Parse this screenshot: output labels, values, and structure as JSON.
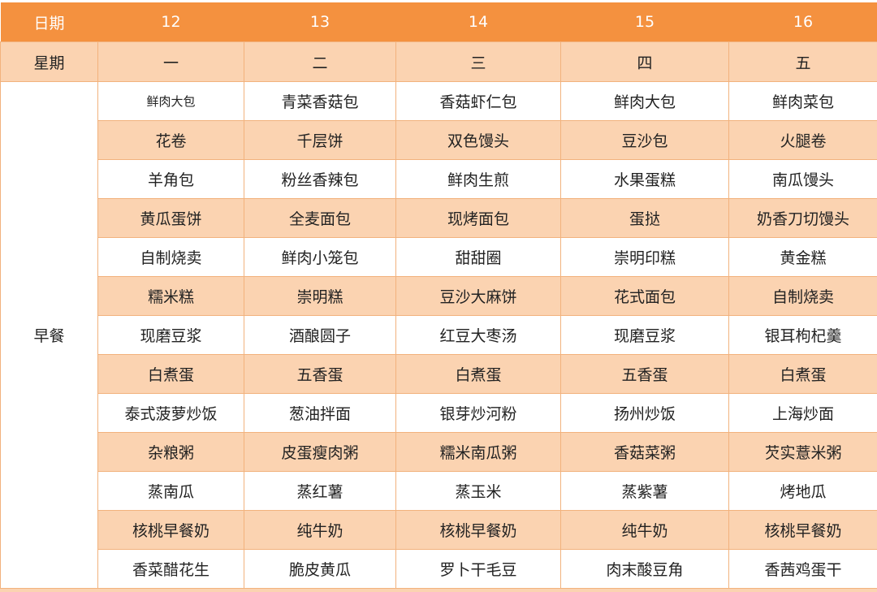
{
  "header": {
    "date_label": "日期",
    "dates": [
      "12",
      "13",
      "14",
      "15",
      "16"
    ]
  },
  "weekday": {
    "label": "星期",
    "days": [
      "一",
      "二",
      "三",
      "四",
      "五"
    ]
  },
  "meal": {
    "label": "早餐"
  },
  "colors": {
    "header": "#f4913f",
    "alt_row": "#fbd3b1",
    "border": "#f2b27d"
  },
  "rows": [
    [
      "鲜肉大包",
      "青菜香菇包",
      "香菇虾仁包",
      "鲜肉大包",
      "鲜肉菜包"
    ],
    [
      "花卷",
      "千层饼",
      "双色馒头",
      "豆沙包",
      "火腿卷"
    ],
    [
      "羊角包",
      "粉丝香辣包",
      "鲜肉生煎",
      "水果蛋糕",
      "南瓜馒头"
    ],
    [
      "黄瓜蛋饼",
      "全麦面包",
      "现烤面包",
      "蛋挞",
      "奶香刀切馒头"
    ],
    [
      "自制烧卖",
      "鲜肉小笼包",
      "甜甜圈",
      "崇明印糕",
      "黄金糕"
    ],
    [
      "糯米糕",
      "崇明糕",
      "豆沙大麻饼",
      "花式面包",
      "自制烧卖"
    ],
    [
      "现磨豆浆",
      "酒酿圆子",
      "红豆大枣汤",
      "现磨豆浆",
      "银耳枸杞羹"
    ],
    [
      "白煮蛋",
      "五香蛋",
      "白煮蛋",
      "五香蛋",
      "白煮蛋"
    ],
    [
      "泰式菠萝炒饭",
      "葱油拌面",
      "银芽炒河粉",
      "扬州炒饭",
      "上海炒面"
    ],
    [
      "杂粮粥",
      "皮蛋瘦肉粥",
      "糯米南瓜粥",
      "香菇菜粥",
      "芡实薏米粥"
    ],
    [
      "蒸南瓜",
      "蒸红薯",
      "蒸玉米",
      "蒸紫薯",
      "烤地瓜"
    ],
    [
      "核桃早餐奶",
      "纯牛奶",
      "核桃早餐奶",
      "纯牛奶",
      "核桃早餐奶"
    ],
    [
      "香菜醋花生",
      "脆皮黄瓜",
      "罗卜干毛豆",
      "肉末酸豆角",
      "香茜鸡蛋干"
    ]
  ]
}
